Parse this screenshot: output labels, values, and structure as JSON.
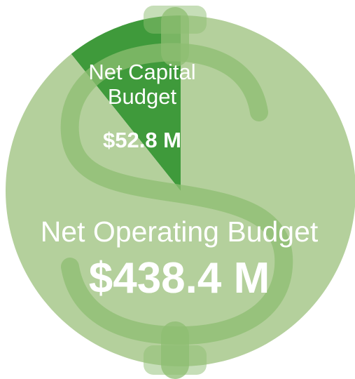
{
  "chart_data": {
    "type": "pie",
    "categories": [
      "Net Capital Budget",
      "Net Operating Budget"
    ],
    "values": [
      52.8,
      438.4
    ],
    "value_labels": [
      "$52.8 M",
      "$438.4 M"
    ],
    "colors": [
      "#3f9a3b",
      "#b4d09c"
    ]
  }
}
